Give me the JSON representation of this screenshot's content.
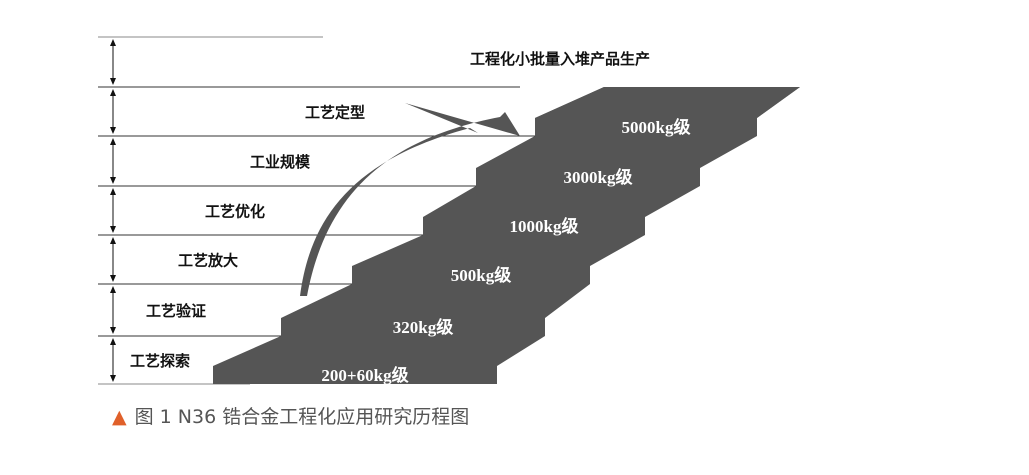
{
  "figure": {
    "top_label": "工程化小批量入堆产品生产",
    "stages": [
      "工艺探索",
      "工艺验证",
      "工艺放大",
      "工艺优化",
      "工业规模",
      "工艺定型"
    ],
    "steps": [
      "200+60kg级",
      "320kg级",
      "500kg级",
      "1000kg级",
      "3000kg级",
      "5000kg级"
    ],
    "step_color": "#555555",
    "arrow_color": "#555555"
  },
  "caption": {
    "icon": "triangle-up-icon",
    "icon_color": "#e0602a",
    "text": "图 1   N36 锆合金工程化应用研究历程图"
  }
}
